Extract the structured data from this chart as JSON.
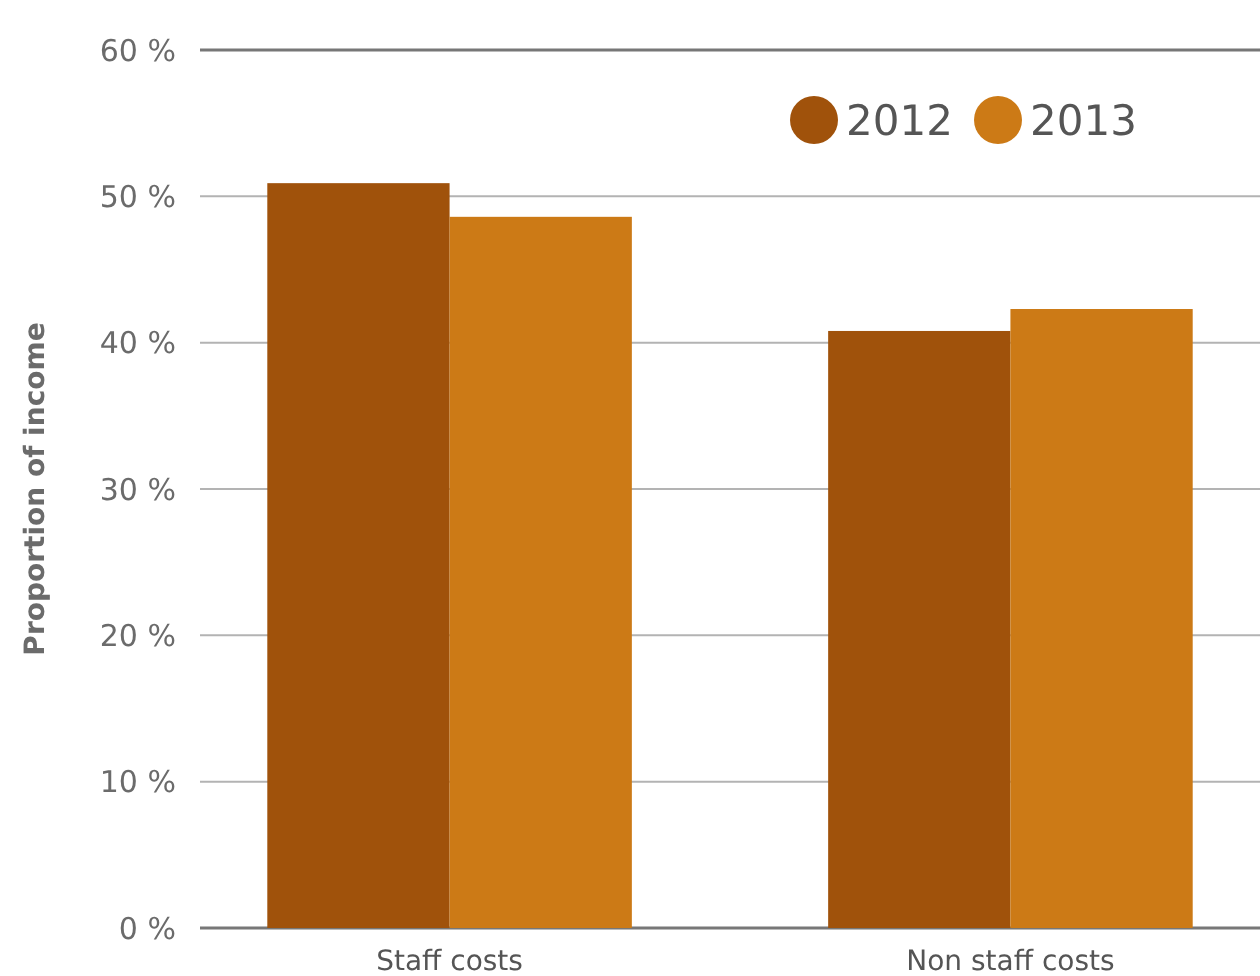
{
  "chart_data": {
    "type": "bar",
    "ylabel": "Proportion of income",
    "categories": [
      "Staff costs",
      "Non staff costs"
    ],
    "series": [
      {
        "name": "2012",
        "color": "#a0520b",
        "values": [
          50.9,
          40.8
        ]
      },
      {
        "name": "2013",
        "color": "#cc7a16",
        "values": [
          48.6,
          42.3
        ]
      }
    ],
    "ylim": [
      0,
      60
    ],
    "yticks": [
      {
        "value": 0,
        "label": "0 %"
      },
      {
        "value": 10,
        "label": "10 %"
      },
      {
        "value": 20,
        "label": "20 %"
      },
      {
        "value": 30,
        "label": "30 %"
      },
      {
        "value": 40,
        "label": "40 %"
      },
      {
        "value": 50,
        "label": "50 %"
      },
      {
        "value": 60,
        "label": "60 %"
      }
    ],
    "grid": "y",
    "legend": "top right"
  }
}
